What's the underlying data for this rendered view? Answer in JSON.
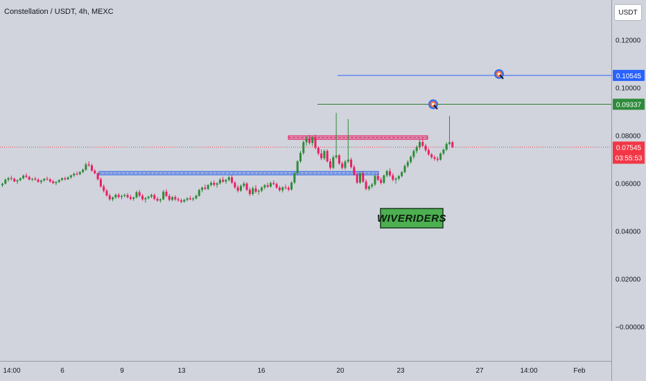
{
  "ui": {
    "currency_button": "USDT",
    "colors": {
      "background": "#d1d4dc",
      "up": "#2e8b3a",
      "down": "#e91e63",
      "support_zone": "#3b6ee8",
      "resistance_zone": "#e91e63",
      "target_1_line": "#2f7d32",
      "target_2_line": "#2962ff",
      "price_label": "#f23645",
      "watermark_bg": "#4caf50"
    },
    "icons": [
      "target-icon"
    ]
  },
  "chart_data": {
    "type": "candlestick",
    "title": "Constellation / USDT, 4h, MEXC",
    "ylim": [
      -0.014,
      0.137
    ],
    "y_ticks": [
      "0.12000",
      "0.10000",
      "0.08000",
      "0.06000",
      "0.04000",
      "0.02000",
      "−0.00000"
    ],
    "y_tick_values": [
      0.12,
      0.1,
      0.08,
      0.06,
      0.04,
      0.02,
      0.0
    ],
    "x_ticks": [
      "14:00",
      "6",
      "9",
      "13",
      "16",
      "20",
      "23",
      "27",
      "14:00",
      "Feb"
    ],
    "price_labels": {
      "target_2": "0.10545",
      "target_1": "0.09337",
      "current": "0.07545",
      "countdown": "03:55:53"
    },
    "levels": {
      "target_2": 0.10545,
      "target_1": 0.09337,
      "current": 0.07545
    },
    "zones": [
      {
        "name": "support",
        "low": 0.0638,
        "high": 0.0653
      },
      {
        "name": "resistance",
        "low": 0.0787,
        "high": 0.0802
      }
    ],
    "watermark": "WIVERIDERS",
    "grid": false,
    "candles": [
      [
        0.0595,
        0.0605,
        0.0587,
        0.0602
      ],
      [
        0.0602,
        0.0623,
        0.0598,
        0.0618
      ],
      [
        0.0618,
        0.063,
        0.061,
        0.0625
      ],
      [
        0.0625,
        0.0635,
        0.0615,
        0.0622
      ],
      [
        0.0622,
        0.0627,
        0.0608,
        0.0611
      ],
      [
        0.0611,
        0.062,
        0.06,
        0.0616
      ],
      [
        0.0616,
        0.0628,
        0.0612,
        0.0624
      ],
      [
        0.0624,
        0.064,
        0.062,
        0.0635
      ],
      [
        0.0635,
        0.0645,
        0.0625,
        0.063
      ],
      [
        0.063,
        0.0635,
        0.0615,
        0.0619
      ],
      [
        0.0619,
        0.0626,
        0.0612,
        0.0622
      ],
      [
        0.0622,
        0.063,
        0.0615,
        0.0618
      ],
      [
        0.0618,
        0.0624,
        0.0606,
        0.0609
      ],
      [
        0.0609,
        0.0618,
        0.06,
        0.0615
      ],
      [
        0.0615,
        0.0625,
        0.061,
        0.0622
      ],
      [
        0.0622,
        0.0631,
        0.0615,
        0.0619
      ],
      [
        0.0619,
        0.0625,
        0.0605,
        0.0611
      ],
      [
        0.0611,
        0.0618,
        0.06,
        0.0604
      ],
      [
        0.0604,
        0.0612,
        0.0595,
        0.0609
      ],
      [
        0.0609,
        0.062,
        0.0604,
        0.0617
      ],
      [
        0.0617,
        0.0628,
        0.0612,
        0.0624
      ],
      [
        0.0624,
        0.063,
        0.0615,
        0.062
      ],
      [
        0.062,
        0.0632,
        0.0617,
        0.0628
      ],
      [
        0.0628,
        0.064,
        0.0622,
        0.0636
      ],
      [
        0.0636,
        0.0648,
        0.063,
        0.0643
      ],
      [
        0.0643,
        0.0652,
        0.0636,
        0.0641
      ],
      [
        0.0641,
        0.0654,
        0.0637,
        0.065
      ],
      [
        0.065,
        0.0665,
        0.0646,
        0.066
      ],
      [
        0.066,
        0.069,
        0.0655,
        0.0682
      ],
      [
        0.0682,
        0.0695,
        0.0672,
        0.0678
      ],
      [
        0.0678,
        0.0685,
        0.0652,
        0.0656
      ],
      [
        0.0656,
        0.0662,
        0.064,
        0.0645
      ],
      [
        0.0645,
        0.065,
        0.0615,
        0.062
      ],
      [
        0.062,
        0.0628,
        0.0585,
        0.059
      ],
      [
        0.059,
        0.0598,
        0.0565,
        0.0572
      ],
      [
        0.0572,
        0.058,
        0.0548,
        0.0552
      ],
      [
        0.0552,
        0.056,
        0.053,
        0.0536
      ],
      [
        0.0536,
        0.0548,
        0.0528,
        0.0544
      ],
      [
        0.0544,
        0.056,
        0.0538,
        0.0555
      ],
      [
        0.0555,
        0.0562,
        0.054,
        0.0546
      ],
      [
        0.0546,
        0.0556,
        0.0536,
        0.055
      ],
      [
        0.055,
        0.056,
        0.0544,
        0.0554
      ],
      [
        0.0554,
        0.0562,
        0.054,
        0.0545
      ],
      [
        0.0545,
        0.0555,
        0.0532,
        0.0538
      ],
      [
        0.0538,
        0.0548,
        0.053,
        0.0544
      ],
      [
        0.0544,
        0.0572,
        0.054,
        0.0566
      ],
      [
        0.0566,
        0.0575,
        0.0545,
        0.0551
      ],
      [
        0.0551,
        0.0558,
        0.053,
        0.0536
      ],
      [
        0.0536,
        0.0546,
        0.0522,
        0.0541
      ],
      [
        0.0541,
        0.0552,
        0.0536,
        0.0547
      ],
      [
        0.0547,
        0.056,
        0.0541,
        0.0554
      ],
      [
        0.0554,
        0.056,
        0.0532,
        0.0538
      ],
      [
        0.0538,
        0.0546,
        0.0526,
        0.0531
      ],
      [
        0.0531,
        0.054,
        0.0522,
        0.0536
      ],
      [
        0.0536,
        0.0575,
        0.0532,
        0.0568
      ],
      [
        0.0568,
        0.0578,
        0.0545,
        0.055
      ],
      [
        0.055,
        0.0558,
        0.0528,
        0.0534
      ],
      [
        0.0534,
        0.055,
        0.0528,
        0.0545
      ],
      [
        0.0545,
        0.0553,
        0.053,
        0.0536
      ],
      [
        0.0536,
        0.0544,
        0.0526,
        0.0532
      ],
      [
        0.0532,
        0.054,
        0.052,
        0.0526
      ],
      [
        0.0526,
        0.0538,
        0.0522,
        0.0534
      ],
      [
        0.0534,
        0.0545,
        0.0528,
        0.054
      ],
      [
        0.054,
        0.055,
        0.0532,
        0.0536
      ],
      [
        0.0536,
        0.0545,
        0.0528,
        0.054
      ],
      [
        0.054,
        0.0556,
        0.0535,
        0.0551
      ],
      [
        0.0551,
        0.058,
        0.0547,
        0.0575
      ],
      [
        0.0575,
        0.059,
        0.0565,
        0.0585
      ],
      [
        0.0585,
        0.0598,
        0.0575,
        0.058
      ],
      [
        0.058,
        0.06,
        0.0574,
        0.0596
      ],
      [
        0.0596,
        0.0612,
        0.059,
        0.0605
      ],
      [
        0.0605,
        0.0615,
        0.059,
        0.0597
      ],
      [
        0.0597,
        0.0608,
        0.0585,
        0.0603
      ],
      [
        0.0603,
        0.0625,
        0.0598,
        0.0618
      ],
      [
        0.0618,
        0.063,
        0.0605,
        0.061
      ],
      [
        0.061,
        0.0622,
        0.06,
        0.0617
      ],
      [
        0.0617,
        0.0635,
        0.0612,
        0.0628
      ],
      [
        0.0628,
        0.0638,
        0.06,
        0.0606
      ],
      [
        0.0606,
        0.0612,
        0.058,
        0.0586
      ],
      [
        0.0586,
        0.0595,
        0.0565,
        0.0572
      ],
      [
        0.0572,
        0.0598,
        0.0568,
        0.0592
      ],
      [
        0.0592,
        0.061,
        0.0585,
        0.0602
      ],
      [
        0.0602,
        0.0608,
        0.057,
        0.0576
      ],
      [
        0.0576,
        0.0585,
        0.055,
        0.0558
      ],
      [
        0.0558,
        0.059,
        0.0552,
        0.0582
      ],
      [
        0.0582,
        0.0596,
        0.0562,
        0.0568
      ],
      [
        0.0568,
        0.0578,
        0.0555,
        0.0572
      ],
      [
        0.0572,
        0.059,
        0.0566,
        0.0586
      ],
      [
        0.0586,
        0.06,
        0.0578,
        0.0595
      ],
      [
        0.0595,
        0.0605,
        0.0584,
        0.0589
      ],
      [
        0.0589,
        0.061,
        0.0585,
        0.0604
      ],
      [
        0.0604,
        0.0615,
        0.0595,
        0.06
      ],
      [
        0.06,
        0.0606,
        0.058,
        0.0585
      ],
      [
        0.0585,
        0.0592,
        0.0568,
        0.0574
      ],
      [
        0.0574,
        0.059,
        0.0565,
        0.0586
      ],
      [
        0.0586,
        0.0598,
        0.0578,
        0.0584
      ],
      [
        0.0584,
        0.0592,
        0.057,
        0.0577
      ],
      [
        0.0577,
        0.0612,
        0.0572,
        0.0606
      ],
      [
        0.0606,
        0.065,
        0.06,
        0.0645
      ],
      [
        0.0645,
        0.07,
        0.064,
        0.0695
      ],
      [
        0.0695,
        0.0738,
        0.0688,
        0.073
      ],
      [
        0.073,
        0.0782,
        0.0722,
        0.0775
      ],
      [
        0.0775,
        0.0802,
        0.076,
        0.079
      ],
      [
        0.079,
        0.0805,
        0.0765,
        0.0772
      ],
      [
        0.0772,
        0.08,
        0.076,
        0.0795
      ],
      [
        0.0795,
        0.0806,
        0.0745,
        0.0752
      ],
      [
        0.0752,
        0.0758,
        0.072,
        0.0728
      ],
      [
        0.0728,
        0.0745,
        0.07,
        0.0708
      ],
      [
        0.0708,
        0.0745,
        0.07,
        0.0738
      ],
      [
        0.0738,
        0.0745,
        0.069,
        0.0695
      ],
      [
        0.0695,
        0.0706,
        0.066,
        0.0668
      ],
      [
        0.0668,
        0.072,
        0.0662,
        0.0712
      ],
      [
        0.0712,
        0.0898,
        0.0705,
        0.072
      ],
      [
        0.072,
        0.0725,
        0.068,
        0.0686
      ],
      [
        0.0686,
        0.0695,
        0.066,
        0.0668
      ],
      [
        0.0668,
        0.07,
        0.066,
        0.0694
      ],
      [
        0.0694,
        0.0872,
        0.0688,
        0.0702
      ],
      [
        0.0702,
        0.071,
        0.0665,
        0.0671
      ],
      [
        0.0671,
        0.068,
        0.0635,
        0.064
      ],
      [
        0.064,
        0.0648,
        0.06,
        0.0606
      ],
      [
        0.0606,
        0.065,
        0.06,
        0.0644
      ],
      [
        0.0644,
        0.0655,
        0.0605,
        0.061
      ],
      [
        0.061,
        0.062,
        0.0574,
        0.058
      ],
      [
        0.058,
        0.0595,
        0.0572,
        0.059
      ],
      [
        0.059,
        0.0605,
        0.0582,
        0.0598
      ],
      [
        0.0598,
        0.064,
        0.0592,
        0.0634
      ],
      [
        0.0634,
        0.0645,
        0.0612,
        0.0618
      ],
      [
        0.0618,
        0.0628,
        0.0598,
        0.0605
      ],
      [
        0.0605,
        0.064,
        0.06,
        0.0636
      ],
      [
        0.0636,
        0.066,
        0.0628,
        0.0654
      ],
      [
        0.0654,
        0.0665,
        0.063,
        0.0636
      ],
      [
        0.0636,
        0.0645,
        0.0612,
        0.0618
      ],
      [
        0.0618,
        0.0628,
        0.0602,
        0.0623
      ],
      [
        0.0623,
        0.0638,
        0.0615,
        0.0633
      ],
      [
        0.0633,
        0.0655,
        0.0628,
        0.065
      ],
      [
        0.065,
        0.0682,
        0.0645,
        0.0676
      ],
      [
        0.0676,
        0.07,
        0.0668,
        0.0692
      ],
      [
        0.0692,
        0.072,
        0.0685,
        0.0714
      ],
      [
        0.0714,
        0.0745,
        0.0705,
        0.0738
      ],
      [
        0.0738,
        0.0762,
        0.0728,
        0.0755
      ],
      [
        0.0755,
        0.0785,
        0.0745,
        0.0776
      ],
      [
        0.0776,
        0.079,
        0.0755,
        0.076
      ],
      [
        0.076,
        0.0768,
        0.0735,
        0.0742
      ],
      [
        0.0742,
        0.075,
        0.0718,
        0.0724
      ],
      [
        0.0724,
        0.073,
        0.0705,
        0.0712
      ],
      [
        0.0712,
        0.072,
        0.0698,
        0.0706
      ],
      [
        0.0706,
        0.0715,
        0.0694,
        0.0702
      ],
      [
        0.0702,
        0.0732,
        0.0698,
        0.0728
      ],
      [
        0.0728,
        0.0748,
        0.072,
        0.0744
      ],
      [
        0.0744,
        0.0775,
        0.0738,
        0.0768
      ],
      [
        0.0768,
        0.0885,
        0.0762,
        0.0775
      ],
      [
        0.0775,
        0.078,
        0.075,
        0.0755
      ]
    ]
  }
}
